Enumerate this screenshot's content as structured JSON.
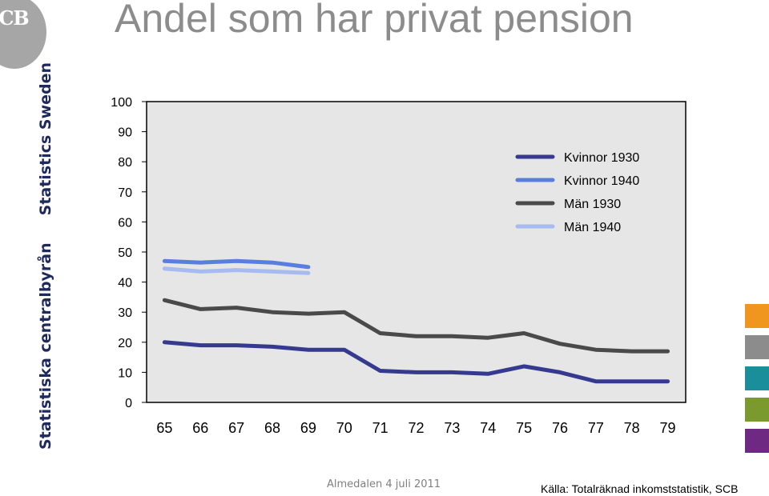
{
  "slide": {
    "title": "Andel som har privat pension",
    "logo_text": "SCB",
    "brand_primary": "Statistiska centralbyrån",
    "brand_secondary": "Statistics Sweden",
    "footer_center": "Almedalen 4 juli 2011",
    "source": "Källa: Totalräknad inkomststatistik, SCB",
    "swatch_colors": [
      "#f0961e",
      "#8c8c8c",
      "#1a8e9a",
      "#7a9a2e",
      "#6e2a82"
    ]
  },
  "chart_data": {
    "type": "line",
    "title": "",
    "xlabel": "",
    "ylabel": "",
    "categories": [
      "65",
      "66",
      "67",
      "68",
      "69",
      "70",
      "71",
      "72",
      "73",
      "74",
      "75",
      "76",
      "77",
      "78",
      "79"
    ],
    "ylim": [
      0,
      100
    ],
    "yticks": [
      0,
      10,
      20,
      30,
      40,
      50,
      60,
      70,
      80,
      90,
      100
    ],
    "grid": false,
    "plot_background": "#e6e6e6",
    "legend_position": "top-right",
    "series": [
      {
        "name": "Kvinnor 1930",
        "color": "#353a8f",
        "values": [
          20,
          19,
          19,
          18.5,
          17.5,
          17.5,
          10.5,
          10,
          10,
          9.5,
          12,
          10,
          7,
          7,
          7
        ]
      },
      {
        "name": "Kvinnor 1940",
        "color": "#5a7de0",
        "values": [
          47,
          46.5,
          47,
          46.5,
          45,
          null,
          null,
          null,
          null,
          null,
          null,
          null,
          null,
          null,
          null
        ]
      },
      {
        "name": "Män 1930",
        "color": "#4a4a4a",
        "values": [
          34,
          31,
          31.5,
          30,
          29.5,
          30,
          23,
          22,
          22,
          21.5,
          23,
          19.5,
          17.5,
          17,
          17
        ]
      },
      {
        "name": "Män 1940",
        "color": "#a7bbf0",
        "values": [
          44.5,
          43.5,
          44,
          43.5,
          43,
          null,
          null,
          null,
          null,
          null,
          null,
          null,
          null,
          null,
          null
        ]
      }
    ]
  }
}
